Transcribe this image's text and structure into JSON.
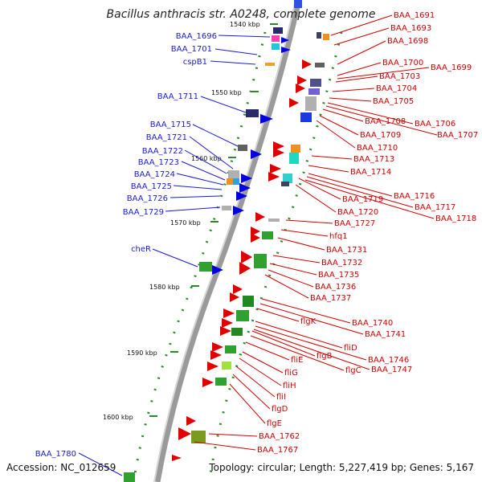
{
  "title": "Bacillus anthracis str. A0248, complete genome",
  "accession": "Accession: NC_012659",
  "topology": "Topology: circular; Length: 5,227,419 bp; Genes: 5,167",
  "colors": {
    "forward_arrow": "#e00000",
    "reverse_arrow": "#0000e0",
    "label_left": "#1a1adb",
    "label_right": "#d40000",
    "backbone": "#9a9a9a",
    "ticks": "#2a8a2a"
  },
  "ticks": [
    "1540 kbp",
    "1550 kbp",
    "1560 kbp",
    "1570 kbp",
    "1580 kbp",
    "1590 kbp",
    "1600 kbp"
  ],
  "labels_left": [
    "BAA_1696",
    "BAA_1701",
    "cspB1",
    "BAA_1711",
    "BAA_1715",
    "BAA_1721",
    "BAA_1722",
    "BAA_1723",
    "BAA_1724",
    "BAA_1725",
    "BAA_1726",
    "BAA_1729",
    "cheR",
    "BAA_1780"
  ],
  "labels_right": [
    "BAA_1691",
    "BAA_1693",
    "BAA_1698",
    "BAA_1700",
    "BAA_1699",
    "BAA_1703",
    "BAA_1704",
    "BAA_1705",
    "BAA_1706",
    "BAA_1707",
    "BAA_1708",
    "BAA_1709",
    "BAA_1710",
    "BAA_1713",
    "BAA_1714",
    "BAA_1716",
    "BAA_1717",
    "BAA_1718",
    "BAA_1719",
    "BAA_1720",
    "BAA_1727",
    "hfq1",
    "BAA_1731",
    "BAA_1732",
    "BAA_1735",
    "BAA_1736",
    "BAA_1737",
    "BAA_1740",
    "BAA_1741",
    "flgK",
    "fliD",
    "BAA_1746",
    "BAA_1747",
    "flgB",
    "flgC",
    "fliE",
    "fliG",
    "fliH",
    "fliI",
    "flgD",
    "flgE",
    "BAA_1762",
    "BAA_1767"
  ]
}
